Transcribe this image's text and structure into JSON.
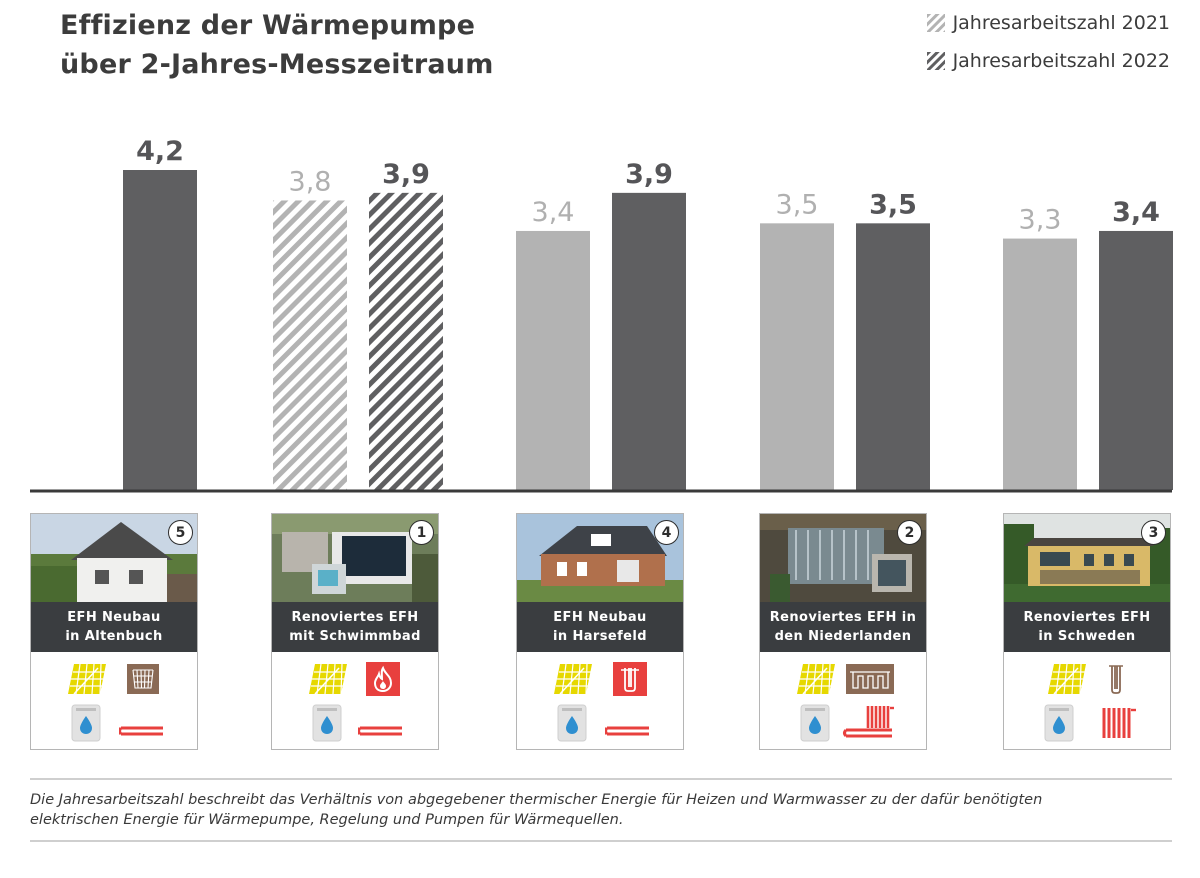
{
  "title": {
    "line1": "Effizienz der Wärmepumpe",
    "line2": "über 2-Jahres-Messzeitraum"
  },
  "legend": [
    {
      "label": "Jahresarbeitszahl 2021",
      "color": "#b3b3b3",
      "pattern": "hatch"
    },
    {
      "label": "Jahresarbeitszahl 2022",
      "color": "#5f5f61",
      "pattern": "hatch"
    }
  ],
  "chart_data": {
    "type": "bar",
    "categories": [
      "EFH Neubau in Altenbuch",
      "Renoviertes EFH mit Schwimmbad",
      "EFH Neubau in Harsefeld",
      "Renoviertes EFH in den Niederlanden",
      "Renoviertes EFH in Schweden"
    ],
    "series": [
      {
        "name": "Jahresarbeitszahl 2021",
        "values": [
          null,
          3.8,
          3.4,
          3.5,
          3.3
        ],
        "labels": [
          "",
          "3,8",
          "3,4",
          "3,5",
          "3,3"
        ],
        "color": "#b3b3b3"
      },
      {
        "name": "Jahresarbeitszahl 2022",
        "values": [
          4.2,
          3.9,
          3.9,
          3.5,
          3.4
        ],
        "labels": [
          "4,2",
          "3,9",
          "3,9",
          "3,5",
          "3,4"
        ],
        "color": "#5f5f61"
      }
    ],
    "hatched_category_index": 1,
    "ylim": [
      0,
      4.2
    ],
    "grid": false,
    "legend_position": "top-right"
  },
  "cards": [
    {
      "number": "5",
      "line1": "EFH Neubau",
      "line2": "in Altenbuch",
      "icons": [
        "solar-panel-icon",
        "ground-collector-icon",
        "water-tank-icon",
        "floor-heating-icon"
      ]
    },
    {
      "number": "1",
      "line1": "Renoviertes EFH",
      "line2": "mit Schwimmbad",
      "icons": [
        "solar-panel-icon",
        "fire-icon",
        "water-tank-icon",
        "floor-heating-icon"
      ]
    },
    {
      "number": "4",
      "line1": "EFH Neubau",
      "line2": "in Harsefeld",
      "icons": [
        "solar-panel-icon",
        "borehole-icon",
        "water-tank-icon",
        "floor-heating-icon"
      ]
    },
    {
      "number": "2",
      "line1": "Renoviertes EFH in",
      "line2": "den Niederlanden",
      "icons": [
        "solar-panel-icon",
        "ground-collector-icon",
        "water-tank-icon",
        "floor-radiator-icon"
      ]
    },
    {
      "number": "3",
      "line1": "Renoviertes EFH",
      "line2": "in Schweden",
      "icons": [
        "solar-panel-icon",
        "borehole-icon",
        "water-tank-icon",
        "radiator-icon"
      ]
    }
  ],
  "footnote": {
    "line1": "Die Jahresarbeitszahl beschreibt das Verhältnis von abgegebener thermischer Energie für Heizen und Warmwasser zu der dafür benötigten",
    "line2": "elektrischen Energie für Wärmepumpe, Regelung und Pumpen für Wärmequellen."
  },
  "colors": {
    "light_bar": "#b3b3b3",
    "dark_bar": "#5f5f61",
    "light_label": "#b0b0b0",
    "dark_label": "#555558",
    "caption_bg": "#3a3d40",
    "solar": "#e6d800",
    "accent_red": "#e8403e",
    "ground_brown": "#8a6a55"
  }
}
